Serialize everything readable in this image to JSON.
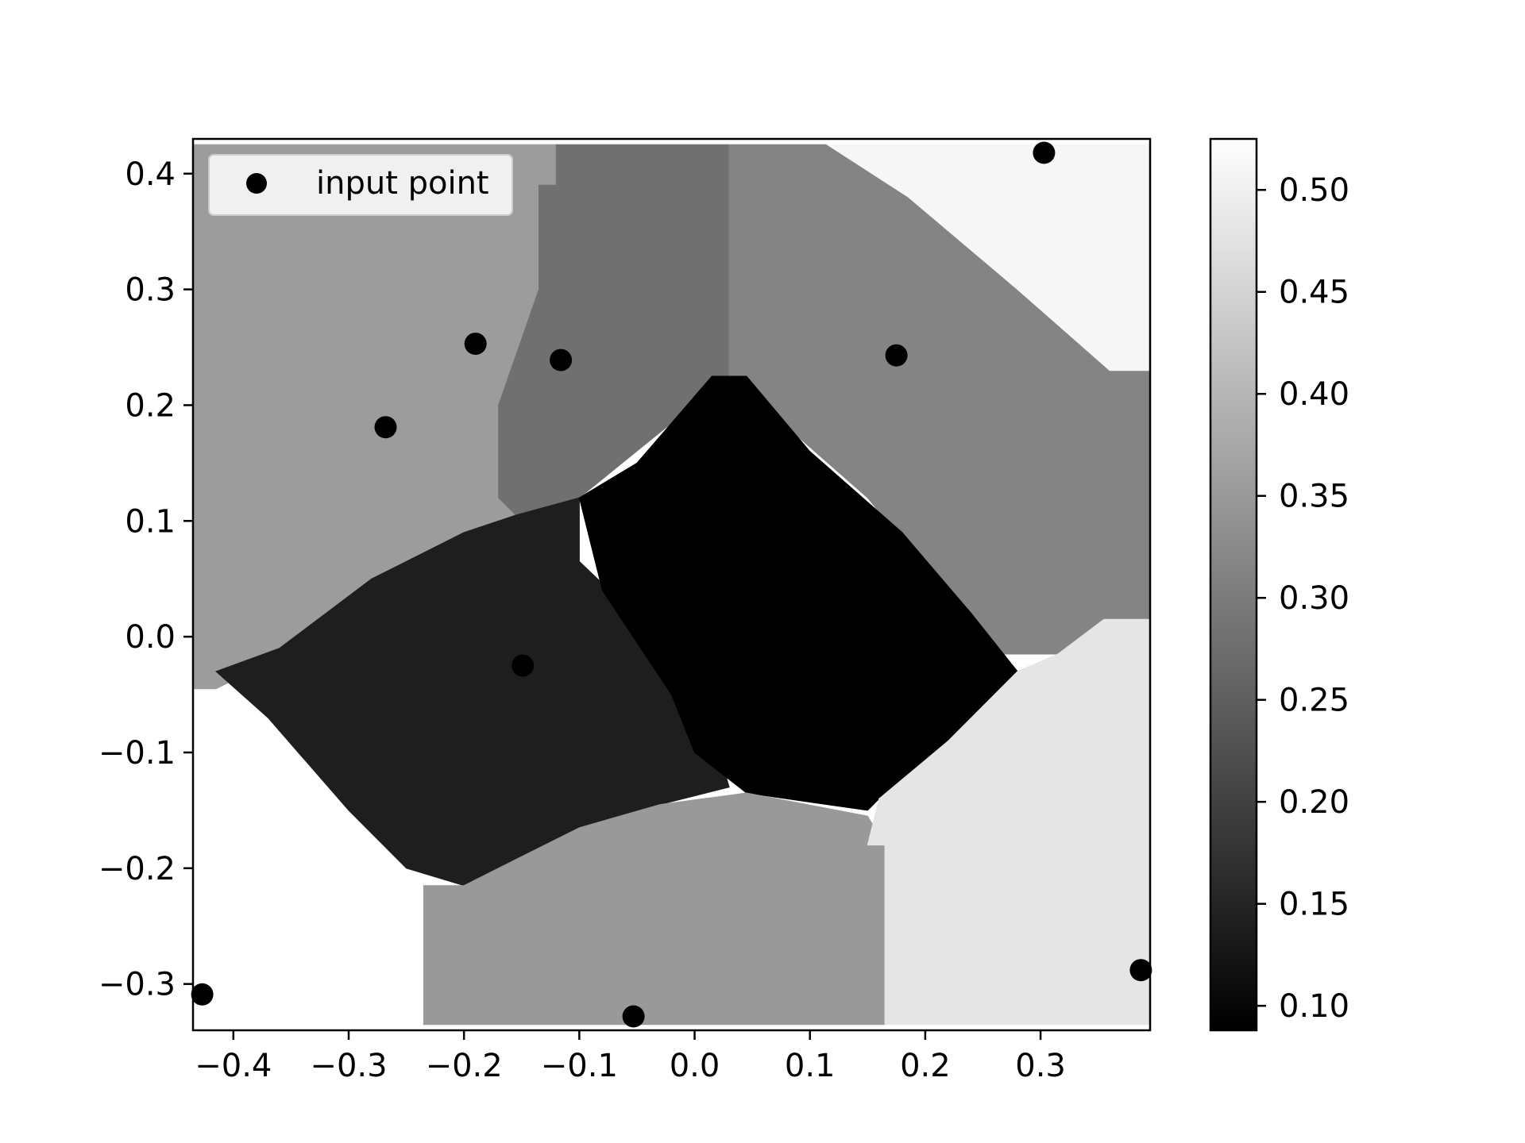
{
  "chart_data": {
    "type": "heatmap",
    "title": "",
    "xlabel": "",
    "ylabel": "",
    "xlim": [
      -0.435,
      0.395
    ],
    "ylim": [
      -0.34,
      0.43
    ],
    "x_ticks": [
      -0.4,
      -0.3,
      -0.2,
      -0.1,
      0.0,
      0.1,
      0.2,
      0.3
    ],
    "x_tick_labels": [
      "−0.4",
      "−0.3",
      "−0.2",
      "−0.1",
      "0.0",
      "0.1",
      "0.2",
      "0.3"
    ],
    "y_ticks": [
      0.4,
      0.3,
      0.2,
      0.1,
      0.0,
      -0.1,
      -0.2,
      -0.3
    ],
    "y_tick_labels": [
      "0.4",
      "0.3",
      "0.2",
      "0.1",
      "0.0",
      "−0.1",
      "−0.2",
      "−0.3"
    ],
    "colormap": "gray",
    "colorbar": {
      "min": 0.088,
      "max": 0.525,
      "ticks": [
        0.1,
        0.15,
        0.2,
        0.25,
        0.3,
        0.35,
        0.4,
        0.45,
        0.5
      ],
      "tick_labels": [
        "0.10",
        "0.15",
        "0.20",
        "0.25",
        "0.30",
        "0.35",
        "0.40",
        "0.45",
        "0.50"
      ]
    },
    "heatmap_extent": {
      "x": [
        -0.435,
        0.395
      ],
      "y": [
        -0.335,
        0.425
      ]
    },
    "regions": [
      {
        "value": 0.525,
        "vertices": [
          [
            -0.435,
            -0.335
          ],
          [
            -0.235,
            -0.335
          ],
          [
            -0.235,
            -0.215
          ],
          [
            -0.37,
            -0.12
          ],
          [
            -0.435,
            -0.045
          ]
        ]
      },
      {
        "value": 0.355,
        "vertices": [
          [
            -0.435,
            0.425
          ],
          [
            -0.12,
            0.425
          ],
          [
            -0.12,
            0.39
          ],
          [
            -0.135,
            0.39
          ],
          [
            -0.135,
            0.3
          ],
          [
            -0.17,
            0.2
          ],
          [
            -0.17,
            0.12
          ],
          [
            -0.155,
            0.105
          ],
          [
            -0.28,
            0.03
          ],
          [
            -0.365,
            -0.02
          ],
          [
            -0.415,
            -0.045
          ],
          [
            -0.435,
            -0.045
          ]
        ]
      },
      {
        "value": 0.28,
        "vertices": [
          [
            -0.12,
            0.425
          ],
          [
            0.03,
            0.425
          ],
          [
            0.03,
            0.225
          ],
          [
            -0.1,
            0.12
          ],
          [
            -0.155,
            0.105
          ],
          [
            -0.17,
            0.12
          ],
          [
            -0.17,
            0.2
          ],
          [
            -0.135,
            0.3
          ],
          [
            -0.135,
            0.39
          ],
          [
            -0.12,
            0.39
          ]
        ]
      },
      {
        "value": 0.315,
        "vertices": [
          [
            0.03,
            0.425
          ],
          [
            0.115,
            0.425
          ],
          [
            0.185,
            0.38
          ],
          [
            0.28,
            0.3
          ],
          [
            0.36,
            0.23
          ],
          [
            0.395,
            0.23
          ],
          [
            0.395,
            0.015
          ],
          [
            0.355,
            0.015
          ],
          [
            0.315,
            -0.015
          ],
          [
            0.26,
            -0.015
          ],
          [
            0.15,
            0.12
          ],
          [
            0.03,
            0.225
          ]
        ]
      },
      {
        "value": 0.51,
        "vertices": [
          [
            0.115,
            0.425
          ],
          [
            0.395,
            0.425
          ],
          [
            0.395,
            0.23
          ],
          [
            0.36,
            0.23
          ],
          [
            0.28,
            0.3
          ],
          [
            0.185,
            0.38
          ]
        ]
      },
      {
        "value": 0.14,
        "vertices": [
          [
            -0.155,
            0.105
          ],
          [
            -0.1,
            0.12
          ],
          [
            -0.1,
            0.065
          ],
          [
            0.0,
            -0.03
          ],
          [
            0.03,
            -0.13
          ],
          [
            -0.03,
            -0.145
          ],
          [
            -0.1,
            -0.165
          ],
          [
            -0.16,
            -0.195
          ],
          [
            -0.2,
            -0.215
          ],
          [
            -0.25,
            -0.2
          ],
          [
            -0.3,
            -0.15
          ],
          [
            -0.37,
            -0.07
          ],
          [
            -0.415,
            -0.03
          ],
          [
            -0.36,
            -0.01
          ],
          [
            -0.28,
            0.05
          ],
          [
            -0.2,
            0.09
          ]
        ]
      },
      {
        "value": 0.088,
        "vertices": [
          [
            0.015,
            0.225
          ],
          [
            0.045,
            0.225
          ],
          [
            0.1,
            0.16
          ],
          [
            0.18,
            0.09
          ],
          [
            0.24,
            0.02
          ],
          [
            0.28,
            -0.03
          ],
          [
            0.22,
            -0.09
          ],
          [
            0.16,
            -0.14
          ],
          [
            0.15,
            -0.15
          ],
          [
            0.045,
            -0.135
          ],
          [
            0.0,
            -0.1
          ],
          [
            -0.02,
            -0.05
          ],
          [
            -0.08,
            0.04
          ],
          [
            -0.1,
            0.12
          ],
          [
            -0.05,
            0.15
          ]
        ]
      },
      {
        "value": 0.35,
        "vertices": [
          [
            -0.235,
            -0.335
          ],
          [
            0.165,
            -0.335
          ],
          [
            0.165,
            -0.18
          ],
          [
            0.15,
            -0.155
          ],
          [
            0.045,
            -0.135
          ],
          [
            -0.03,
            -0.145
          ],
          [
            -0.1,
            -0.165
          ],
          [
            -0.16,
            -0.195
          ],
          [
            -0.2,
            -0.215
          ],
          [
            -0.235,
            -0.215
          ]
        ]
      },
      {
        "value": 0.48,
        "vertices": [
          [
            0.165,
            -0.335
          ],
          [
            0.395,
            -0.335
          ],
          [
            0.395,
            0.015
          ],
          [
            0.355,
            0.015
          ],
          [
            0.315,
            -0.015
          ],
          [
            0.28,
            -0.03
          ],
          [
            0.22,
            -0.09
          ],
          [
            0.16,
            -0.14
          ],
          [
            0.15,
            -0.18
          ],
          [
            0.165,
            -0.18
          ]
        ]
      }
    ],
    "series": [
      {
        "name": "input point",
        "type": "scatter",
        "color": "#000000",
        "points": [
          {
            "x": 0.303,
            "y": 0.418
          },
          {
            "x": -0.19,
            "y": 0.253
          },
          {
            "x": -0.116,
            "y": 0.239
          },
          {
            "x": 0.175,
            "y": 0.243
          },
          {
            "x": -0.268,
            "y": 0.181
          },
          {
            "x": -0.149,
            "y": -0.025
          },
          {
            "x": -0.427,
            "y": -0.309
          },
          {
            "x": -0.053,
            "y": -0.328
          },
          {
            "x": 0.387,
            "y": -0.288
          }
        ]
      }
    ],
    "legend": {
      "position": "top-left",
      "entries": [
        "input point"
      ]
    }
  }
}
